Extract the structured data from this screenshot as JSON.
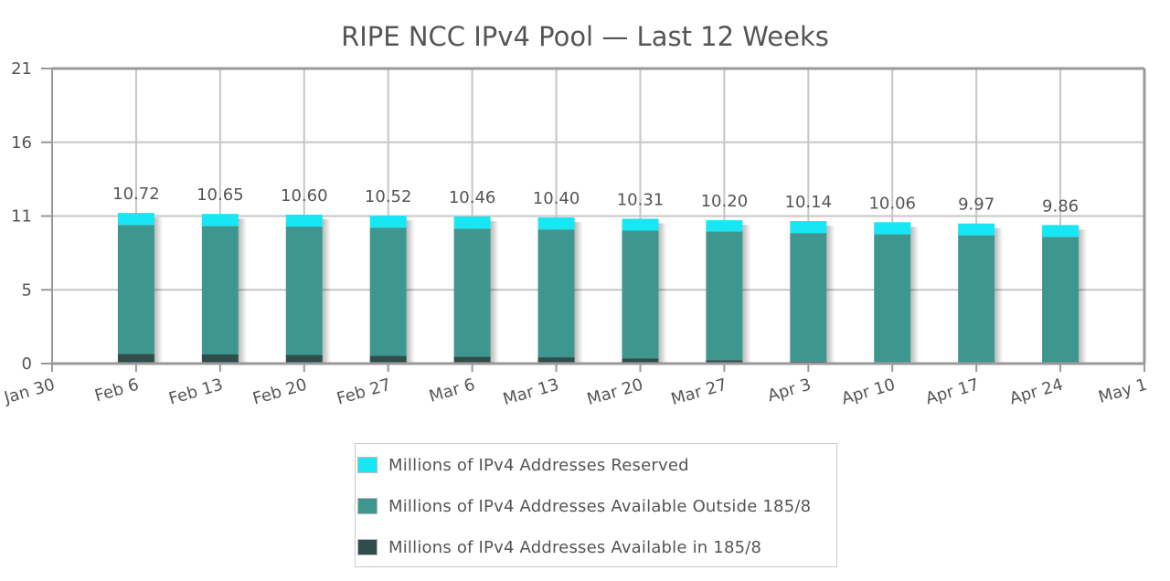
{
  "chart_data": {
    "type": "bar",
    "stacked": true,
    "title": "RIPE NCC IPv4 Pool — Last 12 Weeks",
    "xlabel": "",
    "ylabel": "",
    "ylim": [
      0,
      21
    ],
    "yticks": [
      "0",
      "5",
      "11",
      "16",
      "21"
    ],
    "ytick_values": [
      0,
      5.25,
      10.5,
      15.75,
      21
    ],
    "xticks": [
      "Jan 30",
      "Feb 6",
      "Feb 13",
      "Feb 20",
      "Feb 27",
      "Mar 6",
      "Mar 13",
      "Mar 20",
      "Mar 27",
      "Apr 3",
      "Apr 10",
      "Apr 17",
      "Apr 24",
      "May 1"
    ],
    "categories": [
      "Feb 6",
      "Feb 13",
      "Feb 20",
      "Feb 27",
      "Mar 6",
      "Mar 13",
      "Mar 20",
      "Mar 27",
      "Apr 3",
      "Apr 10",
      "Apr 17",
      "Apr 24"
    ],
    "series": [
      {
        "name": "Millions of IPv4 Addresses Available in 185/8",
        "color": "#2f4d4a",
        "values": [
          0.7,
          0.65,
          0.62,
          0.55,
          0.5,
          0.45,
          0.38,
          0.25,
          0.15,
          0.1,
          0.05,
          0.03
        ]
      },
      {
        "name": "Millions of IPv4 Addresses Available Outside 185/8",
        "color": "#3e978e",
        "values": [
          9.17,
          9.15,
          9.13,
          9.13,
          9.11,
          9.1,
          9.08,
          9.15,
          9.14,
          9.11,
          9.08,
          8.99
        ]
      },
      {
        "name": "Millions of IPv4 Addresses Reserved",
        "color": "#17e6f4",
        "values": [
          0.85,
          0.85,
          0.85,
          0.84,
          0.85,
          0.85,
          0.85,
          0.8,
          0.85,
          0.85,
          0.84,
          0.84
        ]
      }
    ],
    "totals_labels": [
      "10.72",
      "10.65",
      "10.60",
      "10.52",
      "10.46",
      "10.40",
      "10.31",
      "10.20",
      "10.14",
      "10.06",
      "9.97",
      "9.86"
    ],
    "grid": true,
    "legend_position": "bottom"
  },
  "legend": {
    "items": [
      {
        "label": "Millions of IPv4 Addresses Reserved",
        "color": "#17e6f4"
      },
      {
        "label": "Millions of IPv4 Addresses Available Outside 185/8",
        "color": "#3e978e"
      },
      {
        "label": "Millions of IPv4 Addresses Available in 185/8",
        "color": "#2f4d4a"
      }
    ]
  }
}
